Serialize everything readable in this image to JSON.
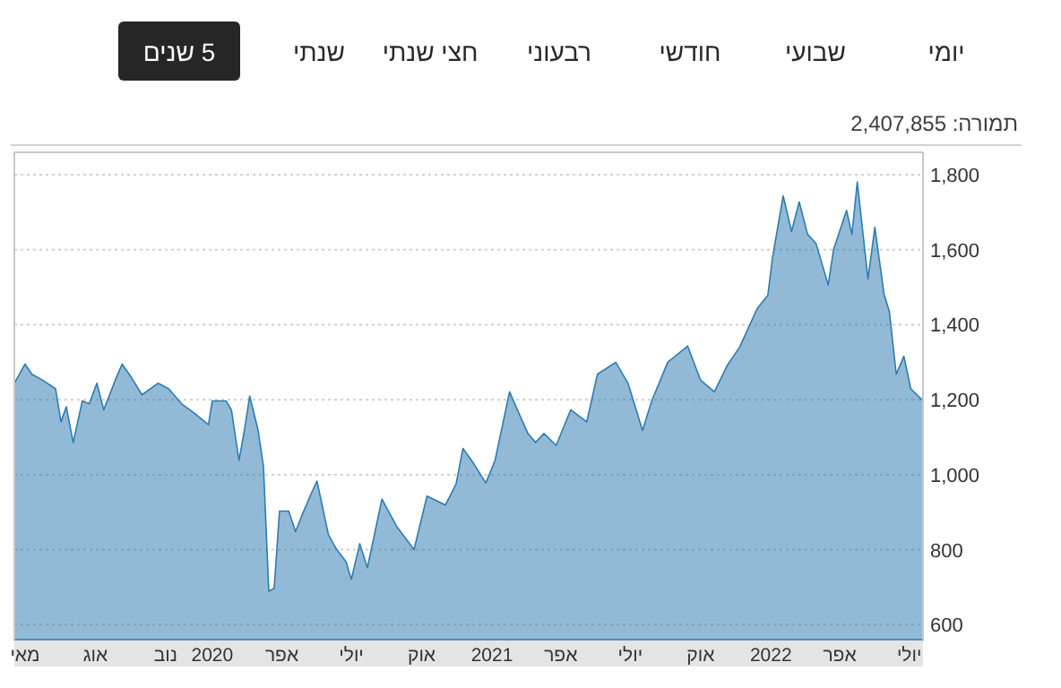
{
  "chart_data": {
    "type": "area",
    "annotations": [
      "יומי",
      "שבועי",
      "חודשי",
      "רבעוני",
      "חצי שנתי",
      "שנתי",
      "5 שנים",
      "תמורה: 2,407,855"
    ],
    "x": [
      "2019-04-17",
      "2019-05-01",
      "2019-05-10",
      "2019-05-24",
      "2019-06-10",
      "2019-06-17",
      "2019-06-24",
      "2019-07-03",
      "2019-07-15",
      "2019-07-24",
      "2019-08-03",
      "2019-08-12",
      "2019-08-27",
      "2019-09-05",
      "2019-09-17",
      "2019-10-01",
      "2019-10-22",
      "2019-11-05",
      "2019-11-22",
      "2019-12-08",
      "2019-12-27",
      "2020-01-01",
      "2020-01-19",
      "2020-01-26",
      "2020-02-05",
      "2020-02-12",
      "2020-02-19",
      "2020-03-01",
      "2020-03-08",
      "2020-03-15",
      "2020-03-22",
      "2020-03-29",
      "2020-04-10",
      "2020-04-19",
      "2020-04-28",
      "2020-05-08",
      "2020-05-17",
      "2020-06-01",
      "2020-06-12",
      "2020-06-24",
      "2020-07-01",
      "2020-07-12",
      "2020-07-22",
      "2020-08-01",
      "2020-08-10",
      "2020-08-29",
      "2020-09-21",
      "2020-10-08",
      "2020-11-01",
      "2020-11-15",
      "2020-11-24",
      "2020-12-08",
      "2020-12-24",
      "2021-01-05",
      "2021-01-24",
      "2021-02-05",
      "2021-02-17",
      "2021-02-27",
      "2021-03-10",
      "2021-03-26",
      "2021-04-14",
      "2021-05-05",
      "2021-05-19",
      "2021-06-12",
      "2021-06-28",
      "2021-07-17",
      "2021-07-29",
      "2021-08-19",
      "2021-09-14",
      "2021-10-01",
      "2021-10-19",
      "2021-11-05",
      "2021-11-21",
      "2021-12-14",
      "2021-12-28",
      "2022-01-03",
      "2022-01-17",
      "2022-01-28",
      "2022-02-07",
      "2022-02-18",
      "2022-03-01",
      "2022-03-17",
      "2022-03-24",
      "2022-04-10",
      "2022-04-17",
      "2022-04-24",
      "2022-05-08",
      "2022-05-17",
      "2022-05-29",
      "2022-06-05",
      "2022-06-14",
      "2022-06-24",
      "2022-07-03",
      "2022-07-19"
    ],
    "series": [
      {
        "color": "#2e7bb0",
        "values": [
          1244,
          1295,
          1268,
          1252,
          1229,
          1141,
          1181,
          1086,
          1197,
          1189,
          1244,
          1173,
          1252,
          1295,
          1260,
          1213,
          1244,
          1229,
          1189,
          1165,
          1133,
          1197,
          1197,
          1173,
          1038,
          1118,
          1210,
          1118,
          1022,
          689,
          697,
          903,
          903,
          848,
          895,
          943,
          983,
          840,
          800,
          768,
          721,
          816,
          752,
          848,
          935,
          863,
          800,
          943,
          919,
          975,
          1070,
          1030,
          978,
          1038,
          1221,
          1165,
          1110,
          1086,
          1110,
          1078,
          1173,
          1141,
          1268,
          1300,
          1244,
          1118,
          1197,
          1300,
          1343,
          1252,
          1221,
          1292,
          1340,
          1443,
          1479,
          1578,
          1744,
          1649,
          1728,
          1641,
          1617,
          1506,
          1601,
          1705,
          1641,
          1781,
          1522,
          1660,
          1482,
          1435,
          1268,
          1316,
          1229,
          1197
        ]
      }
    ],
    "xlim": [
      "2019-04-17",
      "2022-07-19"
    ],
    "xticks": [
      {
        "value": "2019-05-01",
        "label": "מאי"
      },
      {
        "value": "2019-08-01",
        "label": "אוג"
      },
      {
        "value": "2019-11-01",
        "label": "נוב"
      },
      {
        "value": "2020-01-01",
        "label": "2020"
      },
      {
        "value": "2020-04-01",
        "label": "אפר"
      },
      {
        "value": "2020-07-01",
        "label": "יולי"
      },
      {
        "value": "2020-10-01",
        "label": "אוק"
      },
      {
        "value": "2021-01-01",
        "label": "2021"
      },
      {
        "value": "2021-04-01",
        "label": "אפר"
      },
      {
        "value": "2021-07-01",
        "label": "יולי"
      },
      {
        "value": "2021-10-01",
        "label": "אוק"
      },
      {
        "value": "2022-01-01",
        "label": "2022"
      },
      {
        "value": "2022-04-01",
        "label": "אפר"
      },
      {
        "value": "2022-07-01",
        "label": "יולי"
      }
    ],
    "ylim": [
      560,
      1860
    ],
    "yticks": [
      600,
      {
        "value": 800,
        "label": "800"
      },
      {
        "value": 1000,
        "label": "1,000"
      },
      {
        "value": 1200,
        "label": "1,200"
      },
      {
        "value": 1400,
        "label": "1,400"
      },
      {
        "value": 1600,
        "label": "1,600"
      },
      {
        "value": 1800,
        "label": "1,800"
      }
    ],
    "grid": "y"
  }
}
